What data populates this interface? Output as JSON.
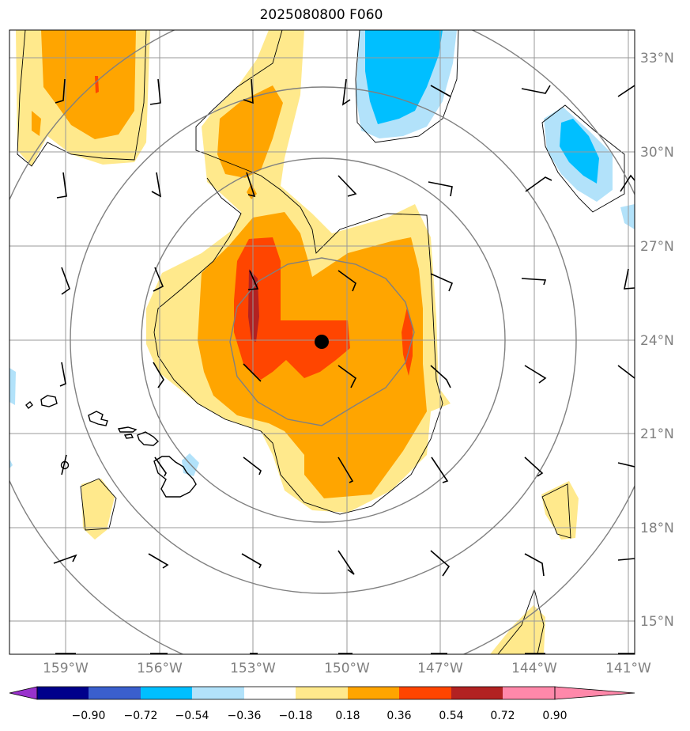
{
  "title": "2025080800 F060",
  "lat_labels": [
    "33°N",
    "30°N",
    "27°N",
    "24°N",
    "21°N",
    "18°N",
    "15°N"
  ],
  "lon_labels": [
    "159°W",
    "156°W",
    "153°W",
    "150°W",
    "147°W",
    "144°W",
    "141°W"
  ],
  "colorbar": {
    "ticks": [
      "−0.90",
      "−0.72",
      "−0.54",
      "−0.36",
      "−0.18",
      "0.18",
      "0.36",
      "0.54",
      "0.72",
      "0.90"
    ],
    "colors": [
      "#9932cc",
      "#00008b",
      "#3a5fcd",
      "#00bfff",
      "#b2e2fa",
      "#ffffff",
      "#ffe98c",
      "#ffa500",
      "#ff4500",
      "#b22222",
      "#ff88aa"
    ]
  },
  "storm_center": {
    "lon": -150.75,
    "lat": 24.0
  }
}
